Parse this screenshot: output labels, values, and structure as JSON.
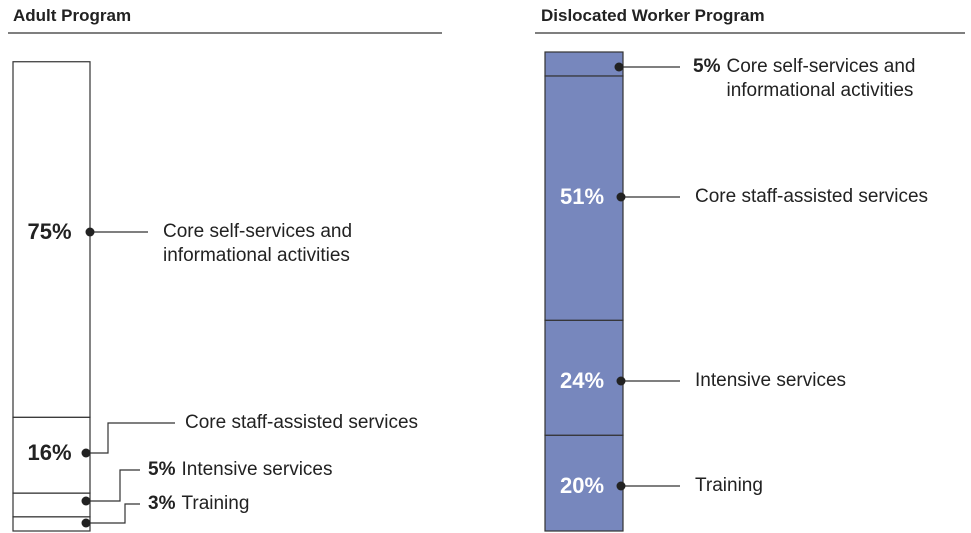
{
  "chart_data": [
    {
      "type": "stacked-bar",
      "title": "Adult Program",
      "categories": [
        "Core self-services and informational activities",
        "Core staff-assisted services",
        "Intensive services",
        "Training"
      ],
      "values": [
        75,
        16,
        5,
        3
      ],
      "value_labels": [
        "75%",
        "16%",
        "5%",
        "3%"
      ],
      "color": "#ffffff",
      "ylim": [
        0,
        100
      ]
    },
    {
      "type": "stacked-bar",
      "title": "Dislocated Worker Program",
      "categories": [
        "Core self-services and informational activities",
        "Core staff-assisted services",
        "Intensive services",
        "Training"
      ],
      "values": [
        5,
        51,
        24,
        20
      ],
      "value_labels": [
        "5%",
        "51%",
        "24%",
        "20%"
      ],
      "color": "#7787bd",
      "ylim": [
        0,
        100
      ]
    }
  ]
}
